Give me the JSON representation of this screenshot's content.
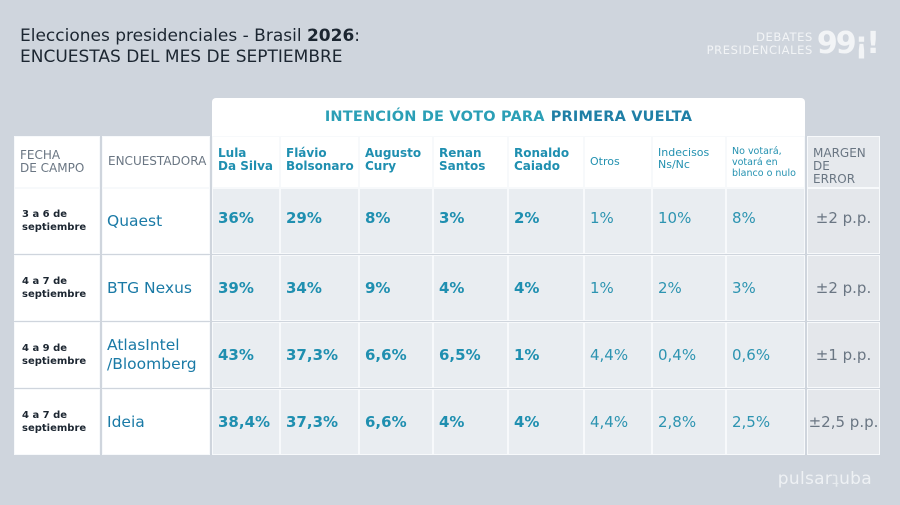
{
  "header": {
    "title_part1": "Elecciones presidenciales - Brasil ",
    "title_year": "2026",
    "title_colon": ":",
    "subtitle": "ENCUESTAS DEL MES DE SEPTIEMBRE",
    "brand_line1": "DEBATES",
    "brand_line2": "PRESIDENCIALES",
    "brand_mark": "99¡!"
  },
  "table": {
    "group_title": "INTENCIÓN DE VOTO PARA",
    "group_title_strong": "PRIMERA VUELTA",
    "columns": {
      "fecha": [
        "FECHA",
        "DE CAMPO"
      ],
      "encuestadora": "ENCUESTADORA",
      "lula": [
        "Lula",
        "Da Silva"
      ],
      "flavio": [
        "Flávio",
        "Bolsonaro"
      ],
      "augusto": [
        "Augusto",
        "Cury"
      ],
      "renan": [
        "Renan",
        "Santos"
      ],
      "ronaldo": [
        "Ronaldo",
        "Caiado"
      ],
      "otros": "Otros",
      "indecisos": [
        "Indecisos",
        "Ns/Nc"
      ],
      "novotara": [
        "No votará,",
        "votará en",
        "blanco o nulo"
      ],
      "margen": [
        "MARGEN",
        "DE ERROR"
      ]
    },
    "rows": [
      {
        "date": [
          "3 a 6 de",
          "septiembre"
        ],
        "pollster": [
          "Quaest"
        ],
        "lula": "36%",
        "flavio": "29%",
        "augusto": "8%",
        "renan": "3%",
        "ronaldo": "2%",
        "otros": "1%",
        "indecisos": "10%",
        "novotara": "8%",
        "margen": "±2 p.p."
      },
      {
        "date": [
          "4 a 7 de",
          "septiembre"
        ],
        "pollster": [
          "BTG Nexus"
        ],
        "lula": "39%",
        "flavio": "34%",
        "augusto": "9%",
        "renan": "4%",
        "ronaldo": "4%",
        "otros": "1%",
        "indecisos": "2%",
        "novotara": "3%",
        "margen": "±2 p.p."
      },
      {
        "date": [
          "4 a 9 de",
          "septiembre"
        ],
        "pollster": [
          "AtlasIntel",
          "/Bloomberg"
        ],
        "lula": "43%",
        "flavio": "37,3%",
        "augusto": "6,6%",
        "renan": "6,5%",
        "ronaldo": "1%",
        "otros": "4,4%",
        "indecisos": "0,4%",
        "novotara": "0,6%",
        "margen": "±1 p.p."
      },
      {
        "date": [
          "4 a 7 de",
          "septiembre"
        ],
        "pollster": [
          "Ideia"
        ],
        "lula": "38,4%",
        "flavio": "37,3%",
        "augusto": "6,6%",
        "renan": "4%",
        "ronaldo": "4%",
        "otros": "4,4%",
        "indecisos": "2,8%",
        "novotara": "2,5%",
        "margen": "±2,5 p.p."
      }
    ]
  },
  "footer": {
    "logo": "pulsar",
    "logo_suffix": "uba"
  }
}
